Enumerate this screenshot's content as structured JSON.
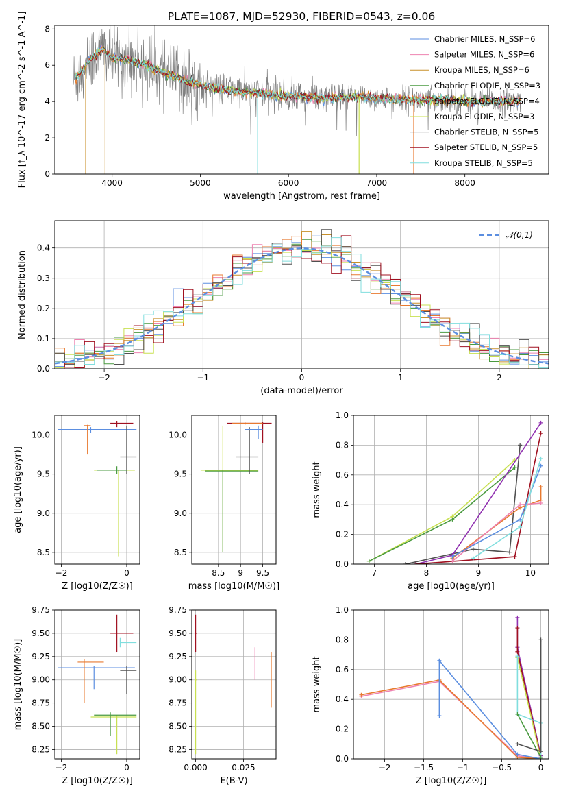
{
  "figure_title": "PLATE=1087, MJD=52930, FIBERID=0543, z=0.06",
  "legend_names": [
    "Chabrier MILES, N_SSP=6",
    "Salpeter MILES, N_SSP=6",
    "Kroupa MILES, N_SSP=6",
    "Chabrier ELODIE, N_SSP=3",
    "Salpeter ELODIE, N_SSP=4",
    "Kroupa ELODIE, N_SSP=3",
    "Chabrier STELIB, N_SSP=5",
    "Salpeter STELIB, N_SSP=5",
    "Kroupa STELIB, N_SSP=5"
  ],
  "model_colors": [
    "#5b8ee0",
    "#ee82b0",
    "#c8902a",
    "#4a9a40",
    "#e87a30",
    "#c8e050",
    "#505050",
    "#a01020",
    "#80dede"
  ],
  "chart_data": [
    {
      "id": "spectrum",
      "type": "line",
      "xlabel": "wavelength [Angstrom, rest frame]",
      "ylabel": "Flux [f_λ 10^-17 erg cm^-2 s^-1 A^-1]",
      "xlim": [
        3350,
        8950
      ],
      "ylim": [
        0,
        8.2
      ],
      "xticks": [
        4000,
        5000,
        6000,
        7000,
        8000
      ],
      "yticks": [
        0,
        2,
        4,
        6,
        8
      ],
      "grid": false,
      "legend_position": "top-right",
      "observed_color": "#808080",
      "continuum": {
        "x": [
          3560,
          3650,
          3750,
          3900,
          4000,
          4200,
          4500,
          4800,
          5000,
          5200,
          5500,
          5800,
          6000,
          6300,
          6600,
          6800,
          7000,
          7200,
          7400,
          7600,
          7800,
          8000,
          8300,
          8600
        ],
        "y": [
          5.2,
          5.6,
          6.4,
          6.9,
          6.4,
          6.3,
          5.8,
          5.2,
          4.9,
          4.7,
          4.5,
          4.4,
          4.3,
          4.2,
          4.2,
          4.3,
          4.2,
          4.1,
          4.1,
          4.1,
          4.1,
          4.0,
          4.0,
          4.0
        ]
      }
    },
    {
      "id": "residuals",
      "type": "step",
      "xlabel": "(data-model)/error",
      "ylabel": "Normed distribution",
      "xlim": [
        -2.5,
        2.5
      ],
      "ylim": [
        0,
        0.49
      ],
      "xticks": [
        -2,
        -1,
        0,
        1,
        2
      ],
      "yticks": [
        0.0,
        0.1,
        0.2,
        0.3,
        0.4
      ],
      "grid": true,
      "legend_position": "top-right",
      "reference_label": "𝒩(0,1)",
      "reference_color": "#5b8ee0",
      "bin_width": 0.1
    },
    {
      "id": "z_vs_age",
      "type": "errorbar",
      "xlabel": "Z [log10(Z/Z☉)]",
      "ylabel": "age [log10(age/yr)]",
      "xlim": [
        -2.2,
        0.4
      ],
      "ylim": [
        8.35,
        10.25
      ],
      "xticks": [
        -2,
        0
      ],
      "yticks": [
        8.5,
        9.0,
        9.5,
        10.0
      ],
      "grid": true
    },
    {
      "id": "mass_vs_age",
      "type": "errorbar",
      "xlabel": "mass [log10(M/M☉)]",
      "xlim": [
        7.9,
        9.8
      ],
      "ylim": [
        8.35,
        10.25
      ],
      "xticks": [
        8.5,
        9.0,
        9.5
      ],
      "yticks": [
        8.5,
        9.0,
        9.5,
        10.0
      ],
      "grid": true
    },
    {
      "id": "age_vs_weight",
      "type": "line",
      "xlabel": "age [log10(age/yr)]",
      "ylabel": "mass weight",
      "xlim": [
        6.6,
        10.35
      ],
      "ylim": [
        0,
        1
      ],
      "xticks": [
        7,
        8,
        9,
        10
      ],
      "yticks": [
        0.0,
        0.2,
        0.4,
        0.6,
        0.8,
        1.0
      ],
      "grid": true
    },
    {
      "id": "z_vs_mass",
      "type": "errorbar",
      "xlabel": "Z [log10(Z/Z☉)]",
      "ylabel": "mass [log10(M/M☉)]",
      "xlim": [
        -2.2,
        0.4
      ],
      "ylim": [
        8.15,
        9.75
      ],
      "xticks": [
        -2,
        0
      ],
      "yticks": [
        8.25,
        8.5,
        8.75,
        9.0,
        9.25,
        9.5,
        9.75
      ],
      "grid": true
    },
    {
      "id": "ebv_vs_mass",
      "type": "errorbar",
      "xlabel": "E(B-V)",
      "xlim": [
        -0.002,
        0.042
      ],
      "ylim": [
        8.15,
        9.75
      ],
      "xticks": [
        0.0,
        0.025
      ],
      "xticklabels": [
        "0.000",
        "0.025"
      ],
      "yticks": [
        8.25,
        8.5,
        8.75,
        9.0,
        9.25,
        9.5,
        9.75
      ],
      "grid": true
    },
    {
      "id": "z_vs_weight",
      "type": "line",
      "xlabel": "Z [log10(Z/Z☉)]",
      "ylabel": "mass weight",
      "xlim": [
        -2.4,
        0.1
      ],
      "ylim": [
        0,
        1
      ],
      "xticks": [
        -2.0,
        -1.5,
        -1.0,
        -0.5,
        0.0
      ],
      "yticks": [
        0.0,
        0.2,
        0.4,
        0.6,
        0.8,
        1.0
      ],
      "grid": true
    }
  ]
}
